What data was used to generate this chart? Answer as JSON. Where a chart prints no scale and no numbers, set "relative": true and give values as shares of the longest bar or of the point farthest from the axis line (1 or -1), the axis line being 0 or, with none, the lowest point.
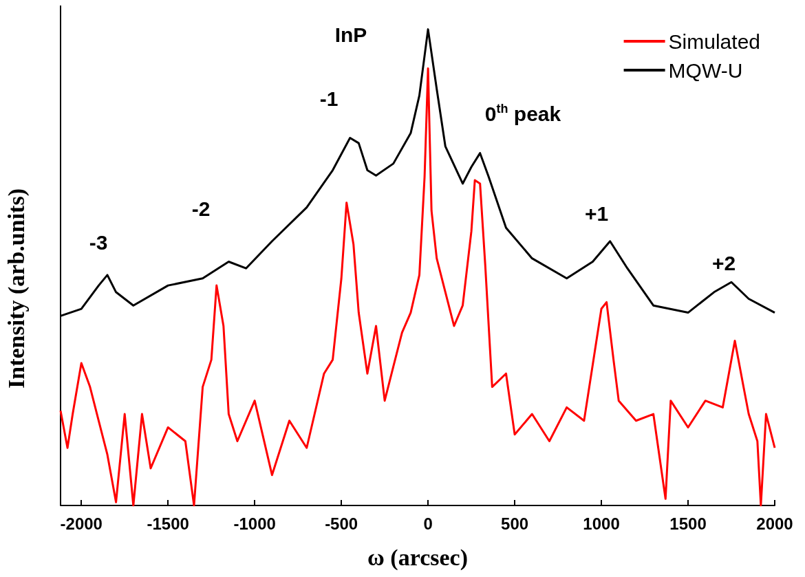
{
  "chart_data": {
    "type": "line",
    "relative": true,
    "xlabel": "ω (arcsec)",
    "ylabel": "Intensity (arb.units)",
    "xlim": [
      -2120,
      2000
    ],
    "xticks": [
      -2000,
      -1500,
      -1000,
      -500,
      0,
      500,
      1000,
      1500,
      2000
    ],
    "legend": "top right",
    "grid": false,
    "marker": "none",
    "line_style": "solid",
    "series": [
      {
        "name": "Simulated",
        "color": "#ff0000",
        "x": [
          -2120,
          -2080,
          -2050,
          -2000,
          -1950,
          -1900,
          -1850,
          -1800,
          -1750,
          -1700,
          -1650,
          -1600,
          -1500,
          -1400,
          -1350,
          -1300,
          -1250,
          -1220,
          -1180,
          -1150,
          -1100,
          -1000,
          -900,
          -800,
          -700,
          -600,
          -550,
          -500,
          -470,
          -430,
          -400,
          -350,
          -300,
          -250,
          -200,
          -150,
          -100,
          -50,
          -20,
          0,
          20,
          50,
          100,
          150,
          200,
          250,
          270,
          300,
          330,
          370,
          450,
          500,
          600,
          700,
          800,
          900,
          1000,
          1030,
          1070,
          1100,
          1200,
          1300,
          1370,
          1400,
          1500,
          1600,
          1700,
          1770,
          1820,
          1850,
          1900,
          1920,
          1950,
          2000
        ],
        "values": [
          0.199,
          0.121,
          0.192,
          0.299,
          0.249,
          0.178,
          0.107,
          0.007,
          0.192,
          0,
          0.192,
          0.078,
          0.164,
          0.135,
          0,
          0.249,
          0.306,
          0.462,
          0.377,
          0.192,
          0.135,
          0.22,
          0.064,
          0.178,
          0.121,
          0.277,
          0.306,
          0.477,
          0.636,
          0.548,
          0.405,
          0.277,
          0.377,
          0.22,
          0.292,
          0.363,
          0.405,
          0.484,
          0.69,
          0.918,
          0.619,
          0.519,
          0.448,
          0.377,
          0.42,
          0.576,
          0.683,
          0.676,
          0.505,
          0.249,
          0.277,
          0.149,
          0.192,
          0.135,
          0.206,
          0.178,
          0.413,
          0.427,
          0.306,
          0.22,
          0.178,
          0.192,
          0.014,
          0.22,
          0.164,
          0.22,
          0.206,
          0.346,
          0.249,
          0.192,
          0.135,
          0,
          0.192,
          0.121
        ]
      },
      {
        "name": "MQW-U",
        "color": "#000000",
        "x": [
          -2120,
          -2000,
          -1900,
          -1850,
          -1800,
          -1700,
          -1500,
          -1300,
          -1150,
          -1050,
          -900,
          -700,
          -550,
          -450,
          -400,
          -350,
          -300,
          -200,
          -100,
          -50,
          0,
          50,
          100,
          200,
          250,
          300,
          350,
          450,
          600,
          800,
          950,
          1050,
          1150,
          1300,
          1500,
          1650,
          1750,
          1850,
          2000
        ],
        "values": [
          0.398,
          0.413,
          0.462,
          0.484,
          0.448,
          0.42,
          0.462,
          0.477,
          0.512,
          0.498,
          0.555,
          0.626,
          0.704,
          0.772,
          0.761,
          0.704,
          0.693,
          0.718,
          0.782,
          0.861,
          1,
          0.875,
          0.754,
          0.676,
          0.711,
          0.74,
          0.69,
          0.583,
          0.519,
          0.477,
          0.512,
          0.555,
          0.498,
          0.42,
          0.405,
          0.448,
          0.469,
          0.434,
          0.405
        ]
      }
    ],
    "annotations": [
      "InP",
      "-1",
      "0$^{th}$ peak",
      "-2",
      "-3",
      "+1",
      "+2"
    ]
  }
}
